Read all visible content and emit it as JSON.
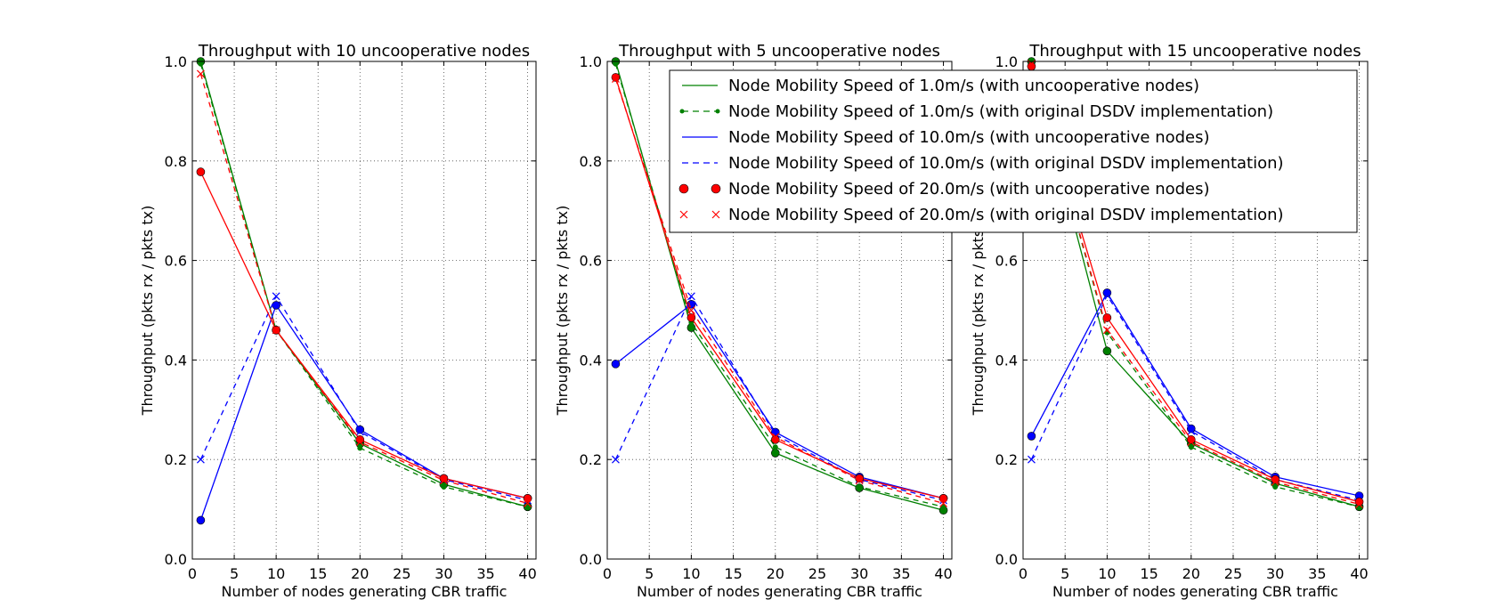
{
  "chart_data": [
    {
      "type": "line",
      "title": "Throughput with 10 uncooperative nodes",
      "xlabel": "Number of nodes generating CBR traffic",
      "ylabel": "Throughput (pkts rx / pkts tx)",
      "xlim": [
        0,
        41
      ],
      "ylim": [
        0,
        1.0
      ],
      "xticks": [
        "0",
        "5",
        "10",
        "15",
        "20",
        "25",
        "30",
        "35",
        "40"
      ],
      "yticks": [
        "0.0",
        "0.2",
        "0.4",
        "0.6",
        "0.8",
        "1.0"
      ],
      "grid": true,
      "x": [
        1,
        10,
        20,
        30,
        40
      ],
      "series": [
        {
          "name": "Node Mobility Speed of 1.0m/s (with uncooperative nodes)",
          "color": "#008000",
          "style": "solid-circle",
          "values": [
            1.0,
            0.46,
            0.232,
            0.15,
            0.105
          ]
        },
        {
          "name": "Node Mobility Speed of 1.0m/s (with original DSDV implementation)",
          "color": "#008000",
          "style": "dashed-point",
          "values": [
            0.995,
            0.46,
            0.223,
            0.145,
            0.105
          ]
        },
        {
          "name": "Node Mobility Speed of 10.0m/s (with uncooperative nodes)",
          "color": "#0000ff",
          "style": "solid-circle",
          "values": [
            0.078,
            0.51,
            0.26,
            0.162,
            0.122
          ]
        },
        {
          "name": "Node Mobility Speed of 10.0m/s (with original DSDV implementation)",
          "color": "#0000ff",
          "style": "dashed-x",
          "values": [
            0.2,
            0.528,
            0.256,
            0.16,
            0.118
          ]
        },
        {
          "name": "Node Mobility Speed of 20.0m/s (with uncooperative nodes)",
          "color": "#ff0000",
          "style": "solid-circle",
          "values": [
            0.778,
            0.46,
            0.24,
            0.162,
            0.122
          ]
        },
        {
          "name": "Node Mobility Speed of 20.0m/s (with original DSDV implementation)",
          "color": "#ff0000",
          "style": "dashed-x",
          "values": [
            0.975,
            0.46,
            0.235,
            0.158,
            0.112
          ]
        }
      ]
    },
    {
      "type": "line",
      "title": "Throughput with 5 uncooperative nodes",
      "xlabel": "Number of nodes generating CBR traffic",
      "ylabel": "Throughput (pkts rx / pkts tx)",
      "xlim": [
        0,
        41
      ],
      "ylim": [
        0,
        1.0
      ],
      "xticks": [
        "0",
        "5",
        "10",
        "15",
        "20",
        "25",
        "30",
        "35",
        "40"
      ],
      "yticks": [
        "0.0",
        "0.2",
        "0.4",
        "0.6",
        "0.8",
        "1.0"
      ],
      "grid": true,
      "x": [
        1,
        10,
        20,
        30,
        40
      ],
      "series": [
        {
          "name": "Node Mobility Speed of 1.0m/s (with uncooperative nodes)",
          "color": "#008000",
          "style": "solid-circle",
          "values": [
            1.0,
            0.465,
            0.213,
            0.143,
            0.098
          ]
        },
        {
          "name": "Node Mobility Speed of 1.0m/s (with original DSDV implementation)",
          "color": "#008000",
          "style": "dashed-point",
          "values": [
            0.995,
            0.475,
            0.225,
            0.145,
            0.105
          ]
        },
        {
          "name": "Node Mobility Speed of 10.0m/s (with uncooperative nodes)",
          "color": "#0000ff",
          "style": "solid-circle",
          "values": [
            0.392,
            0.512,
            0.255,
            0.165,
            0.122
          ]
        },
        {
          "name": "Node Mobility Speed of 10.0m/s (with original DSDV implementation)",
          "color": "#0000ff",
          "style": "dashed-x",
          "values": [
            0.2,
            0.528,
            0.25,
            0.16,
            0.118
          ]
        },
        {
          "name": "Node Mobility Speed of 20.0m/s (with uncooperative nodes)",
          "color": "#ff0000",
          "style": "solid-circle",
          "values": [
            0.968,
            0.485,
            0.24,
            0.162,
            0.122
          ]
        },
        {
          "name": "Node Mobility Speed of 20.0m/s (with original DSDV implementation)",
          "color": "#ff0000",
          "style": "dashed-x",
          "values": [
            0.965,
            0.5,
            0.245,
            0.158,
            0.112
          ]
        }
      ]
    },
    {
      "type": "line",
      "title": "Throughput with 15 uncooperative nodes",
      "xlabel": "Number of nodes generating CBR traffic",
      "ylabel": "Throughput (pkts rx / pkts tx)",
      "xlim": [
        0,
        41
      ],
      "ylim": [
        0,
        1.0
      ],
      "xticks": [
        "0",
        "5",
        "10",
        "15",
        "20",
        "25",
        "30",
        "35",
        "40"
      ],
      "yticks": [
        "0.0",
        "0.2",
        "0.4",
        "0.6",
        "0.8",
        "1.0"
      ],
      "grid": true,
      "x": [
        1,
        10,
        20,
        30,
        40
      ],
      "series": [
        {
          "name": "Node Mobility Speed of 1.0m/s (with uncooperative nodes)",
          "color": "#008000",
          "style": "solid-circle",
          "values": [
            1.0,
            0.418,
            0.232,
            0.152,
            0.105
          ]
        },
        {
          "name": "Node Mobility Speed of 1.0m/s (with original DSDV implementation)",
          "color": "#008000",
          "style": "dashed-point",
          "values": [
            0.995,
            0.455,
            0.225,
            0.145,
            0.105
          ]
        },
        {
          "name": "Node Mobility Speed of 10.0m/s (with uncooperative nodes)",
          "color": "#0000ff",
          "style": "solid-circle",
          "values": [
            0.247,
            0.535,
            0.262,
            0.165,
            0.127
          ]
        },
        {
          "name": "Node Mobility Speed of 10.0m/s (with original DSDV implementation)",
          "color": "#0000ff",
          "style": "dashed-x",
          "values": [
            0.2,
            0.53,
            0.257,
            0.16,
            0.118
          ]
        },
        {
          "name": "Node Mobility Speed of 20.0m/s (with uncooperative nodes)",
          "color": "#ff0000",
          "style": "solid-circle",
          "values": [
            0.99,
            0.485,
            0.24,
            0.16,
            0.115
          ]
        },
        {
          "name": "Node Mobility Speed of 20.0m/s (with original DSDV implementation)",
          "color": "#ff0000",
          "style": "dashed-x",
          "values": [
            0.995,
            0.46,
            0.235,
            0.155,
            0.11
          ]
        }
      ]
    }
  ],
  "legend": {
    "placement": "top-right of middle panel",
    "entries": [
      {
        "label": "Node Mobility Speed of 1.0m/s (with uncooperative nodes)",
        "color": "#008000",
        "style": "solid"
      },
      {
        "label": "Node Mobility Speed of 1.0m/s (with original DSDV implementation)",
        "color": "#008000",
        "style": "dashed-point"
      },
      {
        "label": "Node Mobility Speed of 10.0m/s (with uncooperative nodes)",
        "color": "#0000ff",
        "style": "solid"
      },
      {
        "label": "Node Mobility Speed of 10.0m/s (with original DSDV implementation)",
        "color": "#0000ff",
        "style": "dashed"
      },
      {
        "label": "Node Mobility Speed of 20.0m/s (with uncooperative nodes)",
        "color": "#ff0000",
        "style": "circle"
      },
      {
        "label": "Node Mobility Speed of 20.0m/s (with original DSDV implementation)",
        "color": "#ff0000",
        "style": "x"
      }
    ]
  }
}
